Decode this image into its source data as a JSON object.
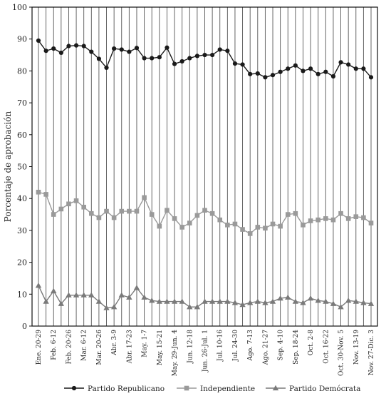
{
  "chart_data": {
    "type": "line",
    "ylabel": "Porcentaje de aprobación",
    "xlabel": "",
    "ylim": [
      0,
      100
    ],
    "yticks": [
      0,
      10,
      20,
      30,
      40,
      50,
      60,
      70,
      80,
      90,
      100
    ],
    "grid": "vertical lines at each observation",
    "legend_position": "bottom",
    "x_tick_labels": [
      "Ene. 20-29",
      "Feb. 6-12",
      "Feb. 20-26",
      "Mar. 6-12",
      "Mar. 20-26",
      "Abr. 3-9",
      "Abr. 17-23",
      "May. 1-7",
      "May. 15-21",
      "May. 29-Jun. 4",
      "Jun. 12-18",
      "Jun. 26-Jul. 1",
      "Jul. 10-16",
      "Jul. 24-30",
      "Ago. 7-13",
      "Ago. 21-27",
      "Sep. 4-10",
      "Sep. 18-24",
      "Oct. 2-8",
      "Oct. 16-22",
      "Oct. 30-Nov. 5",
      "Nov. 13-19",
      "Nov. 27-Dic. 3"
    ],
    "series": [
      {
        "name": "Partido Republicano",
        "color": "#1a1a1a",
        "marker": "circle",
        "values": [
          89.5,
          86.3,
          87.0,
          85.7,
          87.8,
          88.0,
          87.8,
          86.0,
          83.8,
          81.0,
          87.0,
          86.7,
          86.0,
          87.2,
          84.0,
          84.0,
          84.3,
          87.3,
          82.2,
          83.0,
          84.0,
          84.7,
          85.0,
          85.0,
          86.7,
          86.3,
          82.3,
          82.0,
          79.0,
          79.2,
          78.0,
          78.7,
          79.7,
          80.7,
          81.7,
          80.0,
          80.7,
          79.0,
          79.7,
          78.3,
          82.7,
          82.0,
          80.7,
          80.7,
          78.0
        ]
      },
      {
        "name": "Independiente",
        "color": "#9a9a9a",
        "marker": "square",
        "values": [
          42.0,
          41.3,
          35.0,
          36.7,
          38.3,
          39.3,
          37.3,
          35.3,
          34.0,
          36.0,
          34.0,
          36.0,
          36.0,
          36.0,
          40.3,
          35.0,
          31.3,
          36.3,
          33.7,
          31.0,
          32.3,
          34.7,
          36.3,
          35.3,
          33.3,
          31.7,
          32.0,
          30.3,
          29.0,
          31.0,
          30.7,
          32.0,
          31.3,
          35.0,
          35.3,
          31.7,
          33.0,
          33.3,
          33.7,
          33.3,
          35.3,
          33.7,
          34.3,
          34.0,
          32.3
        ]
      },
      {
        "name": "Partido Demócrata",
        "color": "#7a7a7a",
        "marker": "triangle",
        "values": [
          12.7,
          7.7,
          11.0,
          7.0,
          9.7,
          9.7,
          9.7,
          9.7,
          7.7,
          5.7,
          6.0,
          9.7,
          9.0,
          12.0,
          9.0,
          8.0,
          7.7,
          7.7,
          7.7,
          7.7,
          6.0,
          6.0,
          7.7,
          7.7,
          7.7,
          7.7,
          7.3,
          6.7,
          7.3,
          7.7,
          7.3,
          7.7,
          8.7,
          9.0,
          7.7,
          7.3,
          8.7,
          8.0,
          7.7,
          7.0,
          6.0,
          8.0,
          7.7,
          7.3,
          7.0
        ]
      }
    ]
  }
}
